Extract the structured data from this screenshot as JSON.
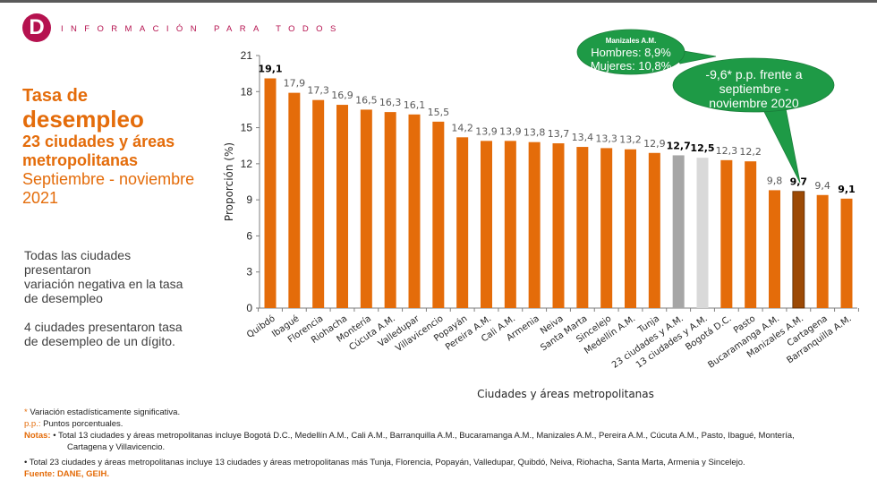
{
  "header": {
    "logo_letter": "D",
    "tagline": "INFORMACIÓN PARA TODOS"
  },
  "title": {
    "line1": "Tasa de",
    "line2": "desempleo",
    "line3": "23 ciudades y áreas",
    "line4": "metropolitanas",
    "line5": "Septiembre - noviembre",
    "line6": "2021"
  },
  "side_notes": {
    "p1_l1": "Todas las ciudades",
    "p1_l2": "presentaron",
    "p1_l3": "variación negativa en la tasa",
    "p1_l4": "de desempleo",
    "p2_l1": "4 ciudades presentaron tasa",
    "p2_l2": "de desempleo de un dígito."
  },
  "callouts": {
    "manizales": {
      "title": "Manizales A.M.",
      "line1": "Hombres: 8,9%",
      "line2": "Mujeres: 10,8%"
    },
    "variation": {
      "line1": "-9,6* p.p. frente a",
      "line2": "septiembre -",
      "line3": "noviembre 2020"
    }
  },
  "footer": {
    "asterisk_label": "*",
    "asterisk_text": " Variación estadísticamente significativa.",
    "pp_label": "p.p.:",
    "pp_text": " Puntos porcentuales.",
    "notas_label": "Notas:",
    "nota1_l1": " • Total 13 ciudades y áreas metropolitanas incluye Bogotá D.C., Medellín A.M., Cali A.M., Barranquilla A.M., Bucaramanga A.M., Manizales A.M., Pereira A.M., Cúcuta A.M., Pasto, Ibagué, Montería,",
    "nota1_l2": "Cartagena y Villavicencio.",
    "nota2": "• Total 23 ciudades y áreas metropolitanas incluye 13 ciudades y áreas metropolitanas más Tunja, Florencia, Popayán, Valledupar, Quibdó, Neiva, Riohacha, Santa Marta, Armenia y Sincelejo.",
    "fuente": "Fuente: DANE, GEIH."
  },
  "colors": {
    "bar_default": "#e46c0a",
    "bar_23_total": "#a6a6a6",
    "bar_13_total": "#d9d9d9",
    "bar_highlight": "#9c4a06",
    "brand": "#b5124f",
    "title": "#e46c0a",
    "callout": "#1e9a46"
  },
  "chart_data": {
    "type": "bar",
    "title": "Tasa de desempleo 23 ciudades y áreas metropolitanas Septiembre - noviembre 2021",
    "xlabel": "Ciudades y áreas metropolitanas",
    "ylabel": "Proporción (%)",
    "ylim": [
      0,
      21
    ],
    "yticks": [
      0,
      3,
      6,
      9,
      12,
      15,
      18,
      21
    ],
    "grid": false,
    "categories": [
      "Quibdó",
      "Ibagué",
      "Florencia",
      "Riohacha",
      "Montería",
      "Cúcuta A.M.",
      "Valledupar",
      "Villavicencio",
      "Popayán",
      "Pereira A.M.",
      "Cali A.M.",
      "Armenia",
      "Neiva",
      "Santa Marta",
      "Sincelejo",
      "Medellín A.M.",
      "Tunja",
      "23 ciudades y A.M.",
      "13 ciudades y A.M.",
      "Bogotá  D.C.",
      "Pasto",
      "Bucaramanga A.M.",
      "Manizales A.M.",
      "Cartagena",
      "Barranquilla A.M."
    ],
    "values": [
      19.1,
      17.9,
      17.3,
      16.9,
      16.5,
      16.3,
      16.1,
      15.5,
      14.2,
      13.9,
      13.9,
      13.8,
      13.7,
      13.4,
      13.3,
      13.2,
      12.9,
      12.7,
      12.5,
      12.3,
      12.2,
      9.8,
      9.7,
      9.4,
      9.1
    ],
    "value_labels": [
      "19,1",
      "17,9",
      "17,3",
      "16,9",
      "16,5",
      "16,3",
      "16,1",
      "15,5",
      "14,2",
      "13,9",
      "13,9",
      "13,8",
      "13,7",
      "13,4",
      "13,3",
      "13,2",
      "12,9",
      "12,7",
      "12,5",
      "12,3",
      "12,2",
      "9,8",
      "9,7",
      "9,4",
      "9,1"
    ],
    "bold_labels": [
      0,
      17,
      18,
      22,
      24
    ],
    "bar_kind": [
      "d",
      "d",
      "d",
      "d",
      "d",
      "d",
      "d",
      "d",
      "d",
      "d",
      "d",
      "d",
      "d",
      "d",
      "d",
      "d",
      "d",
      "t23",
      "t13",
      "d",
      "d",
      "d",
      "hl",
      "d",
      "d"
    ]
  }
}
